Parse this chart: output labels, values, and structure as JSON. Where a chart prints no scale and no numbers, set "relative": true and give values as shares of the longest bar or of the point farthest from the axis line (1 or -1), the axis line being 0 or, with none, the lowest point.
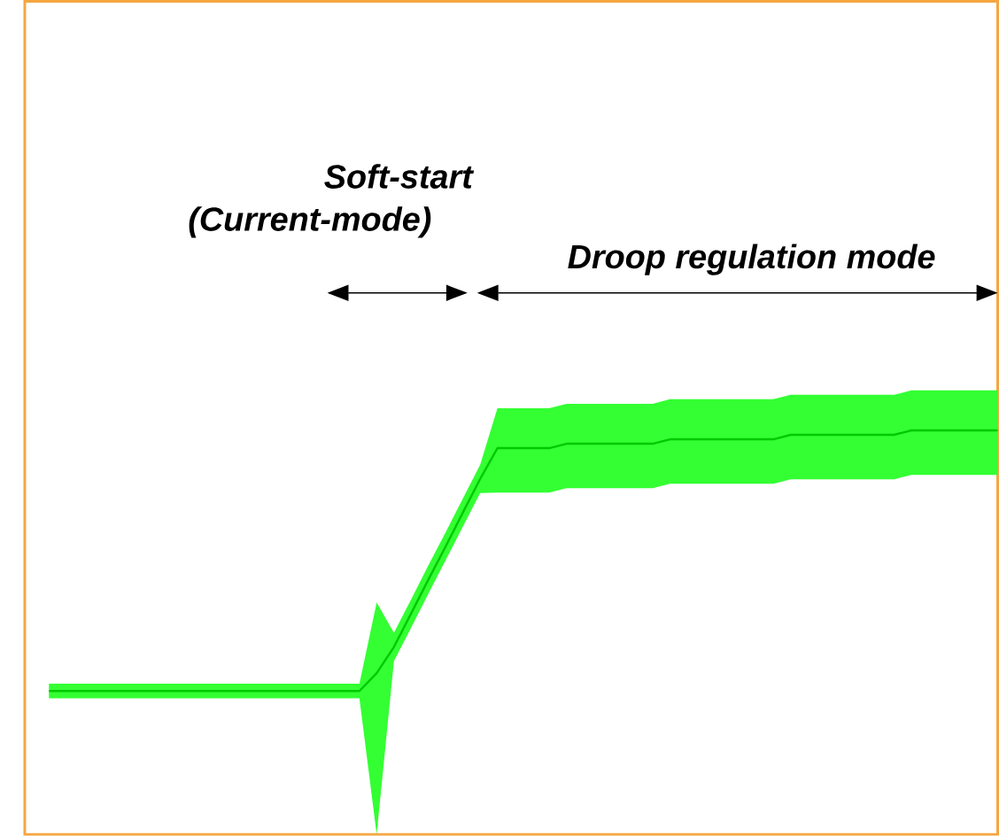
{
  "chart_data": {
    "type": "line",
    "relative": true,
    "annotations": [
      "Soft-start",
      "(Current-mode)",
      "Droop regulation mode"
    ],
    "categories": [
      null,
      null,
      null,
      null,
      null,
      null,
      null,
      null,
      null,
      null,
      null,
      null,
      null,
      null,
      null,
      null,
      null,
      null,
      null,
      null,
      null,
      null,
      null,
      null,
      null,
      null,
      null,
      null,
      null,
      null,
      null,
      null,
      null,
      null,
      null,
      null,
      null,
      null,
      null,
      null,
      null,
      null,
      null,
      null,
      null,
      null,
      null,
      null,
      null,
      null,
      null,
      null,
      null,
      null,
      null,
      null
    ],
    "series": [
      {
        "color": "#00c800",
        "values": [
          0.355,
          0.355,
          0.355,
          0.355,
          0.355,
          0.355,
          0.355,
          0.355,
          0.355,
          0.355,
          0.355,
          0.355,
          0.355,
          0.355,
          0.355,
          0.355,
          0.355,
          0.355,
          0.355,
          0.399,
          0.464,
          0.547,
          0.631,
          0.713,
          0.797,
          0.88,
          0.956,
          0.956,
          0.956,
          0.956,
          0.967,
          0.967,
          0.967,
          0.967,
          0.967,
          0.967,
          0.978,
          0.978,
          0.978,
          0.978,
          0.978,
          0.978,
          0.978,
          0.989,
          0.989,
          0.989,
          0.989,
          0.989,
          0.989,
          0.989,
          1,
          1,
          1,
          1,
          1,
          1
        ],
        "lower": [
          0.337,
          0.337,
          0.337,
          0.337,
          0.337,
          0.337,
          0.337,
          0.337,
          0.337,
          0.337,
          0.337,
          0.337,
          0.337,
          0.337,
          0.337,
          0.337,
          0.337,
          0.337,
          0.337,
          0,
          0.429,
          0.512,
          0.596,
          0.679,
          0.762,
          0.845,
          0.846,
          0.846,
          0.846,
          0.846,
          0.857,
          0.857,
          0.857,
          0.857,
          0.857,
          0.857,
          0.868,
          0.868,
          0.868,
          0.868,
          0.868,
          0.868,
          0.868,
          0.879,
          0.879,
          0.879,
          0.879,
          0.879,
          0.879,
          0.879,
          0.89,
          0.89,
          0.89,
          0.89,
          0.89,
          0.89
        ],
        "upper": [
          0.373,
          0.373,
          0.373,
          0.373,
          0.373,
          0.373,
          0.373,
          0.373,
          0.373,
          0.373,
          0.373,
          0.373,
          0.373,
          0.373,
          0.373,
          0.373,
          0.373,
          0.373,
          0.373,
          0.574,
          0.499,
          0.582,
          0.666,
          0.748,
          0.832,
          0.915,
          1.055,
          1.055,
          1.055,
          1.055,
          1.066,
          1.066,
          1.066,
          1.066,
          1.066,
          1.066,
          1.077,
          1.077,
          1.077,
          1.077,
          1.077,
          1.077,
          1.077,
          1.088,
          1.088,
          1.088,
          1.088,
          1.088,
          1.088,
          1.088,
          1.099,
          1.099,
          1.099,
          1.099,
          1.099,
          1.099
        ]
      }
    ]
  }
}
